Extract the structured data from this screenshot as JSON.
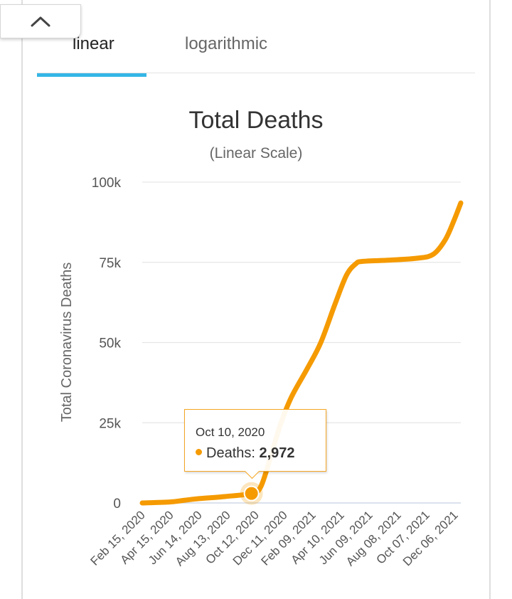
{
  "tabs": {
    "linear": "linear",
    "logarithmic": "logarithmic"
  },
  "colors": {
    "series": "#f59a00",
    "tab_indicator": "#35b6e6"
  },
  "icons": {
    "collapse": "chevron-up-icon"
  },
  "tooltip": {
    "date": "Oct 10, 2020",
    "label": "Deaths:",
    "value": "2,972"
  },
  "chart_data": {
    "type": "line",
    "title": "Total Deaths",
    "subtitle": "(Linear Scale)",
    "ylabel": "Total Coronavirus Deaths",
    "xlabel": "",
    "ylim": [
      0,
      100000
    ],
    "yticks": [
      0,
      25000,
      50000,
      75000,
      100000
    ],
    "ytick_labels": [
      "0",
      "25k",
      "50k",
      "75k",
      "100k"
    ],
    "x_tick_labels": [
      "Feb 15, 2020",
      "Apr 15, 2020",
      "Jun 14, 2020",
      "Aug 13, 2020",
      "Oct 12, 2020",
      "Dec 11, 2020",
      "Feb 09, 2021",
      "Apr 10, 2021",
      "Jun 09, 2021",
      "Aug 08, 2021",
      "Oct 07, 2021",
      "Dec 06, 2021"
    ],
    "x_range": [
      "2020-02-15",
      "2022-01-09"
    ],
    "grid": true,
    "series": [
      {
        "name": "Deaths",
        "points": [
          [
            "2020-02-15",
            0
          ],
          [
            "2020-04-15",
            300
          ],
          [
            "2020-05-15",
            800
          ],
          [
            "2020-06-14",
            1300
          ],
          [
            "2020-08-13",
            2000
          ],
          [
            "2020-10-10",
            2972
          ],
          [
            "2020-10-30",
            5000
          ],
          [
            "2020-11-20",
            14000
          ],
          [
            "2020-12-11",
            24000
          ],
          [
            "2021-01-05",
            33000
          ],
          [
            "2021-02-09",
            42000
          ],
          [
            "2021-03-10",
            50000
          ],
          [
            "2021-04-10",
            62000
          ],
          [
            "2021-05-05",
            71000
          ],
          [
            "2021-05-25",
            74500
          ],
          [
            "2021-06-09",
            75300
          ],
          [
            "2021-08-08",
            75700
          ],
          [
            "2021-10-07",
            76300
          ],
          [
            "2021-11-10",
            77500
          ],
          [
            "2021-12-06",
            82000
          ],
          [
            "2021-12-25",
            88000
          ],
          [
            "2022-01-09",
            93500
          ]
        ]
      }
    ],
    "highlight": {
      "date": "2020-10-10",
      "value": 2972
    }
  }
}
